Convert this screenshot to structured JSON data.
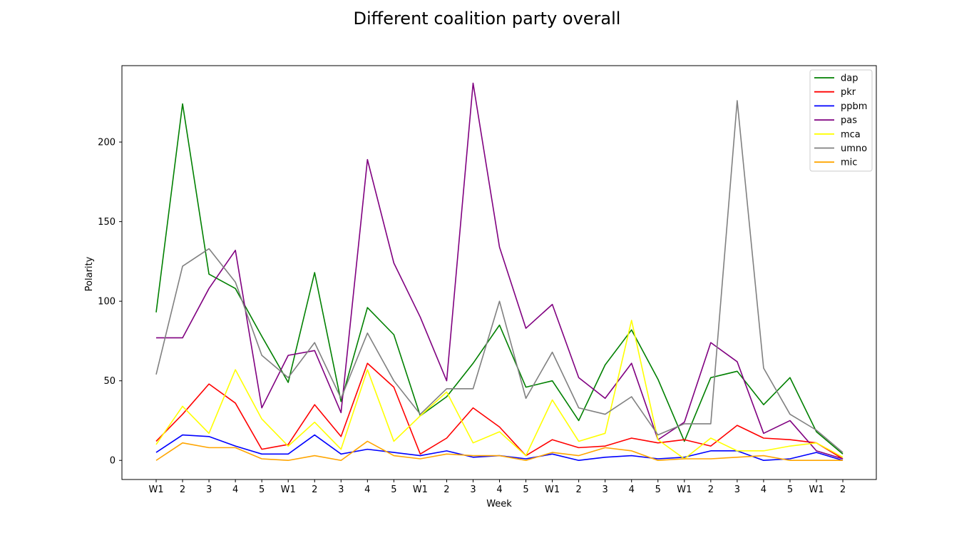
{
  "chart_data": {
    "type": "line",
    "title": "Different coalition party overall",
    "xlabel": "Week",
    "ylabel": "Polarity",
    "x": [
      "W1",
      "2",
      "3",
      "4",
      "5",
      "W1",
      "2",
      "3",
      "4",
      "5",
      "W1",
      "2",
      "3",
      "4",
      "5",
      "W1",
      "2",
      "3",
      "4",
      "5",
      "W1",
      "2",
      "3",
      "4",
      "5",
      "W1",
      "2"
    ],
    "ylim": [
      -12,
      248
    ],
    "yticks": [
      0,
      50,
      100,
      150,
      200
    ],
    "grid": false,
    "legend_position": "top-right",
    "series": [
      {
        "name": "dap",
        "color": "#008000",
        "values": [
          93,
          224,
          117,
          108,
          78,
          49,
          118,
          37,
          96,
          79,
          28,
          40,
          61,
          85,
          46,
          50,
          25,
          60,
          82,
          51,
          12,
          52,
          56,
          35,
          52,
          18,
          4
        ]
      },
      {
        "name": "pkr",
        "color": "#ff0000",
        "values": [
          12,
          29,
          48,
          36,
          7,
          10,
          35,
          15,
          61,
          46,
          4,
          14,
          33,
          21,
          3,
          13,
          8,
          9,
          14,
          11,
          13,
          9,
          22,
          14,
          13,
          11,
          1
        ]
      },
      {
        "name": "ppbm",
        "color": "#0000ff",
        "values": [
          5,
          16,
          15,
          9,
          4,
          4,
          16,
          4,
          7,
          5,
          3,
          6,
          2,
          3,
          1,
          4,
          0,
          2,
          3,
          1,
          2,
          6,
          6,
          0,
          1,
          5,
          0
        ]
      },
      {
        "name": "pas",
        "color": "#800080",
        "values": [
          77,
          77,
          108,
          132,
          33,
          66,
          69,
          30,
          189,
          124,
          90,
          50,
          237,
          134,
          83,
          98,
          52,
          39,
          61,
          13,
          24,
          74,
          62,
          17,
          25,
          6,
          1
        ]
      },
      {
        "name": "mca",
        "color": "#ffff00",
        "values": [
          10,
          34,
          17,
          57,
          26,
          9,
          24,
          7,
          57,
          12,
          28,
          43,
          11,
          18,
          3,
          38,
          12,
          17,
          88,
          13,
          1,
          14,
          6,
          6,
          9,
          11,
          2
        ]
      },
      {
        "name": "umno",
        "color": "#808080",
        "values": [
          54,
          122,
          133,
          112,
          66,
          52,
          74,
          39,
          80,
          50,
          29,
          45,
          45,
          100,
          39,
          68,
          33,
          29,
          40,
          16,
          23,
          23,
          226,
          58,
          29,
          19,
          5
        ]
      },
      {
        "name": "mic",
        "color": "#ffa500",
        "values": [
          0,
          11,
          8,
          8,
          1,
          0,
          3,
          0,
          12,
          3,
          1,
          4,
          3,
          3,
          0,
          5,
          3,
          8,
          6,
          0,
          1,
          1,
          2,
          3,
          0,
          0,
          0
        ]
      }
    ]
  }
}
